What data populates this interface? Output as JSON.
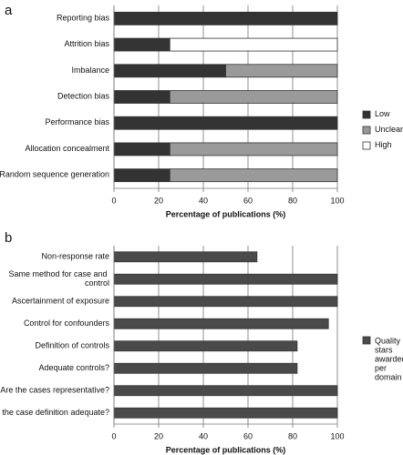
{
  "chart_data": [
    {
      "type": "bar",
      "orientation": "horizontal",
      "stacked": true,
      "title": "a",
      "categories": [
        "Reporting bias",
        "Attrition bias",
        "Imbalance",
        "Detection bias",
        "Performance bias",
        "Allocation concealment",
        "Random sequence generation"
      ],
      "series": [
        {
          "name": "Low",
          "color": "#333333",
          "values": [
            100,
            25,
            50,
            25,
            100,
            25,
            25
          ]
        },
        {
          "name": "Unclear",
          "color": "#9a9a9a",
          "values": [
            0,
            0,
            50,
            75,
            0,
            75,
            75
          ]
        },
        {
          "name": "High",
          "color": "#ffffff",
          "values": [
            0,
            75,
            0,
            0,
            0,
            0,
            0
          ]
        }
      ],
      "xlabel": "Percentage of publications (%)",
      "xlim": [
        0,
        100
      ],
      "xticks": [
        0,
        20,
        40,
        60,
        80,
        100
      ],
      "grid": true,
      "legend": "right"
    },
    {
      "type": "bar",
      "orientation": "horizontal",
      "stacked": false,
      "title": "b",
      "categories": [
        "Non-response rate",
        "Same method for case and control",
        "Ascertainment of exposure",
        "Control for confounders",
        "Definition of controls",
        "Adequate controls?",
        "Are the cases representative?",
        "Is the case definition adequate?"
      ],
      "series": [
        {
          "name": "Quality stars awarded per domain",
          "color": "#4a4a4a",
          "values": [
            64,
            100,
            100,
            96,
            82,
            82,
            100,
            100
          ]
        }
      ],
      "xlabel": "Percentage of publications (%)",
      "xlim": [
        0,
        100
      ],
      "xticks": [
        0,
        20,
        40,
        60,
        80,
        100
      ],
      "grid": true,
      "legend": "right"
    }
  ]
}
